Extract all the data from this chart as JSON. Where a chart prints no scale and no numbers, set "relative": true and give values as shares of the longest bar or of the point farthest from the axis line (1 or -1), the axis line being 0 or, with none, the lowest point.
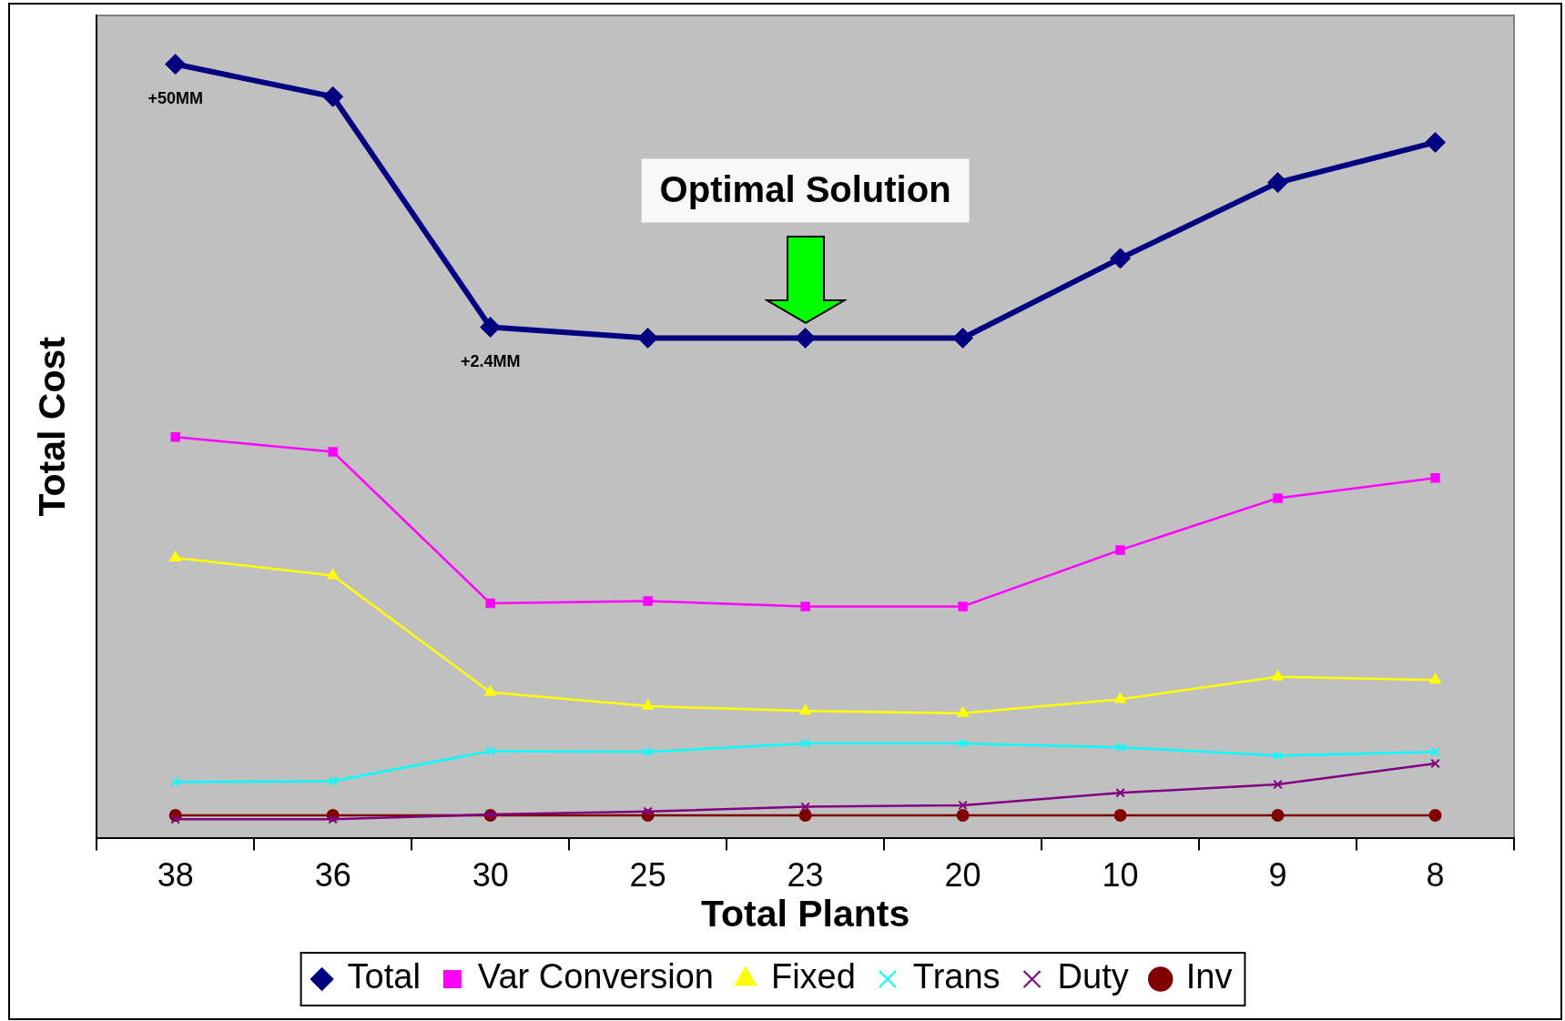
{
  "chart_data": {
    "type": "line",
    "xlabel": "Total Plants",
    "ylabel": "Total Cost",
    "relative": true,
    "legend": "bottom",
    "categories": [
      "38",
      "36",
      "30",
      "25",
      "23",
      "20",
      "10",
      "9",
      "8"
    ],
    "series": [
      {
        "name": "Total",
        "color": "#000080",
        "marker": "diamond",
        "values": [
          1,
          0.958,
          0.66,
          0.646,
          0.646,
          0.646,
          0.749,
          0.847,
          0.899
        ]
      },
      {
        "name": "Var Conversion",
        "color": "#ff00ff",
        "marker": "square",
        "values": [
          0.518,
          0.499,
          0.303,
          0.306,
          0.299,
          0.299,
          0.372,
          0.439,
          0.465
        ]
      },
      {
        "name": "Fixed",
        "color": "#ffff00",
        "marker": "triangle",
        "values": [
          0.362,
          0.339,
          0.188,
          0.17,
          0.164,
          0.161,
          0.179,
          0.208,
          0.204
        ]
      },
      {
        "name": "Trans",
        "color": "#00ffff",
        "marker": "cross",
        "values": [
          0.072,
          0.073,
          0.112,
          0.111,
          0.122,
          0.122,
          0.117,
          0.106,
          0.111
        ]
      },
      {
        "name": "Duty",
        "color": "#800080",
        "marker": "cross",
        "values": [
          0.024,
          0.024,
          0.03,
          0.034,
          0.04,
          0.042,
          0.058,
          0.069,
          0.096
        ]
      },
      {
        "name": "Inv",
        "color": "#800000",
        "marker": "circle",
        "values": [
          0.029,
          0.029,
          0.029,
          0.029,
          0.029,
          0.029,
          0.029,
          0.029,
          0.029
        ]
      }
    ],
    "annotations": [
      {
        "text": "+50MM",
        "x": "38",
        "y": 1
      },
      {
        "text": "+2.4MM",
        "x": "30",
        "y": 0.66
      },
      "Optimal Solution"
    ]
  }
}
